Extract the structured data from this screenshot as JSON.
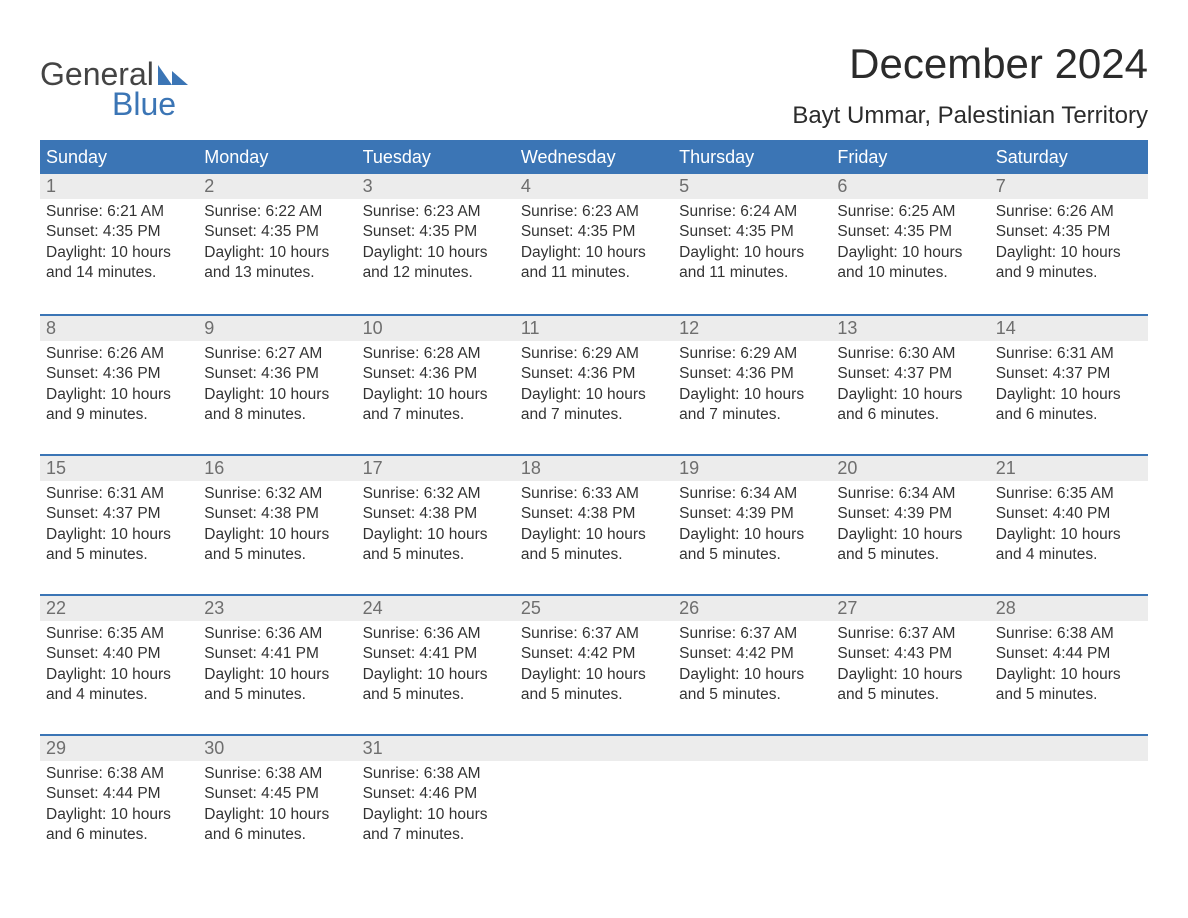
{
  "logo": {
    "top": "General",
    "bottom": "Blue"
  },
  "title": "December 2024",
  "location": "Bayt Ummar, Palestinian Territory",
  "header_bg": "#3b75b5",
  "header_fg": "#ffffff",
  "band_bg": "#ececec",
  "daynum_color": "#6e6e6e",
  "text_color": "#333333",
  "rule_color": "#3b75b5",
  "weekdays": [
    "Sunday",
    "Monday",
    "Tuesday",
    "Wednesday",
    "Thursday",
    "Friday",
    "Saturday"
  ],
  "weeks": [
    [
      {
        "n": "1",
        "sunrise": "6:21 AM",
        "sunset": "4:35 PM",
        "dl1": "Daylight: 10 hours",
        "dl2": "and 14 minutes."
      },
      {
        "n": "2",
        "sunrise": "6:22 AM",
        "sunset": "4:35 PM",
        "dl1": "Daylight: 10 hours",
        "dl2": "and 13 minutes."
      },
      {
        "n": "3",
        "sunrise": "6:23 AM",
        "sunset": "4:35 PM",
        "dl1": "Daylight: 10 hours",
        "dl2": "and 12 minutes."
      },
      {
        "n": "4",
        "sunrise": "6:23 AM",
        "sunset": "4:35 PM",
        "dl1": "Daylight: 10 hours",
        "dl2": "and 11 minutes."
      },
      {
        "n": "5",
        "sunrise": "6:24 AM",
        "sunset": "4:35 PM",
        "dl1": "Daylight: 10 hours",
        "dl2": "and 11 minutes."
      },
      {
        "n": "6",
        "sunrise": "6:25 AM",
        "sunset": "4:35 PM",
        "dl1": "Daylight: 10 hours",
        "dl2": "and 10 minutes."
      },
      {
        "n": "7",
        "sunrise": "6:26 AM",
        "sunset": "4:35 PM",
        "dl1": "Daylight: 10 hours",
        "dl2": "and 9 minutes."
      }
    ],
    [
      {
        "n": "8",
        "sunrise": "6:26 AM",
        "sunset": "4:36 PM",
        "dl1": "Daylight: 10 hours",
        "dl2": "and 9 minutes."
      },
      {
        "n": "9",
        "sunrise": "6:27 AM",
        "sunset": "4:36 PM",
        "dl1": "Daylight: 10 hours",
        "dl2": "and 8 minutes."
      },
      {
        "n": "10",
        "sunrise": "6:28 AM",
        "sunset": "4:36 PM",
        "dl1": "Daylight: 10 hours",
        "dl2": "and 7 minutes."
      },
      {
        "n": "11",
        "sunrise": "6:29 AM",
        "sunset": "4:36 PM",
        "dl1": "Daylight: 10 hours",
        "dl2": "and 7 minutes."
      },
      {
        "n": "12",
        "sunrise": "6:29 AM",
        "sunset": "4:36 PM",
        "dl1": "Daylight: 10 hours",
        "dl2": "and 7 minutes."
      },
      {
        "n": "13",
        "sunrise": "6:30 AM",
        "sunset": "4:37 PM",
        "dl1": "Daylight: 10 hours",
        "dl2": "and 6 minutes."
      },
      {
        "n": "14",
        "sunrise": "6:31 AM",
        "sunset": "4:37 PM",
        "dl1": "Daylight: 10 hours",
        "dl2": "and 6 minutes."
      }
    ],
    [
      {
        "n": "15",
        "sunrise": "6:31 AM",
        "sunset": "4:37 PM",
        "dl1": "Daylight: 10 hours",
        "dl2": "and 5 minutes."
      },
      {
        "n": "16",
        "sunrise": "6:32 AM",
        "sunset": "4:38 PM",
        "dl1": "Daylight: 10 hours",
        "dl2": "and 5 minutes."
      },
      {
        "n": "17",
        "sunrise": "6:32 AM",
        "sunset": "4:38 PM",
        "dl1": "Daylight: 10 hours",
        "dl2": "and 5 minutes."
      },
      {
        "n": "18",
        "sunrise": "6:33 AM",
        "sunset": "4:38 PM",
        "dl1": "Daylight: 10 hours",
        "dl2": "and 5 minutes."
      },
      {
        "n": "19",
        "sunrise": "6:34 AM",
        "sunset": "4:39 PM",
        "dl1": "Daylight: 10 hours",
        "dl2": "and 5 minutes."
      },
      {
        "n": "20",
        "sunrise": "6:34 AM",
        "sunset": "4:39 PM",
        "dl1": "Daylight: 10 hours",
        "dl2": "and 5 minutes."
      },
      {
        "n": "21",
        "sunrise": "6:35 AM",
        "sunset": "4:40 PM",
        "dl1": "Daylight: 10 hours",
        "dl2": "and 4 minutes."
      }
    ],
    [
      {
        "n": "22",
        "sunrise": "6:35 AM",
        "sunset": "4:40 PM",
        "dl1": "Daylight: 10 hours",
        "dl2": "and 4 minutes."
      },
      {
        "n": "23",
        "sunrise": "6:36 AM",
        "sunset": "4:41 PM",
        "dl1": "Daylight: 10 hours",
        "dl2": "and 5 minutes."
      },
      {
        "n": "24",
        "sunrise": "6:36 AM",
        "sunset": "4:41 PM",
        "dl1": "Daylight: 10 hours",
        "dl2": "and 5 minutes."
      },
      {
        "n": "25",
        "sunrise": "6:37 AM",
        "sunset": "4:42 PM",
        "dl1": "Daylight: 10 hours",
        "dl2": "and 5 minutes."
      },
      {
        "n": "26",
        "sunrise": "6:37 AM",
        "sunset": "4:42 PM",
        "dl1": "Daylight: 10 hours",
        "dl2": "and 5 minutes."
      },
      {
        "n": "27",
        "sunrise": "6:37 AM",
        "sunset": "4:43 PM",
        "dl1": "Daylight: 10 hours",
        "dl2": "and 5 minutes."
      },
      {
        "n": "28",
        "sunrise": "6:38 AM",
        "sunset": "4:44 PM",
        "dl1": "Daylight: 10 hours",
        "dl2": "and 5 minutes."
      }
    ],
    [
      {
        "n": "29",
        "sunrise": "6:38 AM",
        "sunset": "4:44 PM",
        "dl1": "Daylight: 10 hours",
        "dl2": "and 6 minutes."
      },
      {
        "n": "30",
        "sunrise": "6:38 AM",
        "sunset": "4:45 PM",
        "dl1": "Daylight: 10 hours",
        "dl2": "and 6 minutes."
      },
      {
        "n": "31",
        "sunrise": "6:38 AM",
        "sunset": "4:46 PM",
        "dl1": "Daylight: 10 hours",
        "dl2": "and 7 minutes."
      },
      {
        "empty": true
      },
      {
        "empty": true
      },
      {
        "empty": true
      },
      {
        "empty": true
      }
    ]
  ],
  "labels": {
    "sunrise_prefix": "Sunrise: ",
    "sunset_prefix": "Sunset: "
  }
}
